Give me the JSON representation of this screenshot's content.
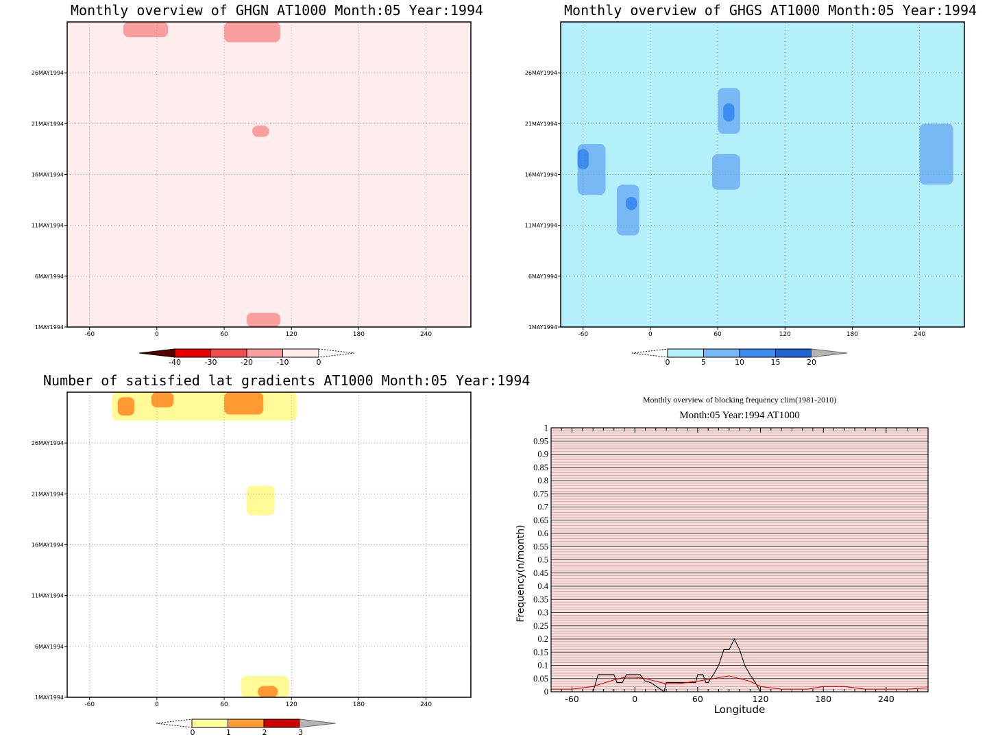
{
  "chart_data": [
    {
      "type": "heatmap",
      "title": "Monthly overview of GHGN AT1000 Month:05 Year:1994",
      "x_ticks": [
        -60,
        0,
        60,
        120,
        180,
        240
      ],
      "y_ticks": [
        "1MAY1994",
        "6MAY1994",
        "11MAY1994",
        "16MAY1994",
        "21MAY1994",
        "26MAY1994"
      ],
      "xlim": [
        -80,
        280
      ],
      "ylim_days": [
        1,
        31
      ],
      "grid": true,
      "colorbar": {
        "labels": [
          "-40",
          "-30",
          "-20",
          "-10",
          "0"
        ],
        "colors": [
          "#5a0000",
          "#e60000",
          "#f24d4d",
          "#fa9f9f",
          "#ffecec"
        ]
      },
      "regions": [
        {
          "level": "0",
          "color": "#ffecec",
          "shape": "background"
        },
        {
          "level": "-10",
          "color": "#fa9f9f",
          "lon": [
            -30,
            10
          ],
          "day": [
            29.5,
            31
          ]
        },
        {
          "level": "-10",
          "color": "#fa9f9f",
          "lon": [
            60,
            110
          ],
          "day": [
            29,
            31
          ]
        },
        {
          "level": "-10",
          "color": "#fa9f9f",
          "lon": [
            85,
            100
          ],
          "day": [
            19.7,
            20.8
          ]
        },
        {
          "level": "-10",
          "color": "#fa9f9f",
          "lon": [
            80,
            110
          ],
          "day": [
            1,
            2.4
          ]
        }
      ]
    },
    {
      "type": "heatmap",
      "title": "Monthly overview of GHGS AT1000 Month:05 Year:1994",
      "x_ticks": [
        -60,
        0,
        60,
        120,
        180,
        240
      ],
      "y_ticks": [
        "1MAY1994",
        "6MAY1994",
        "11MAY1994",
        "16MAY1994",
        "21MAY1994",
        "26MAY1994"
      ],
      "xlim": [
        -80,
        280
      ],
      "ylim_days": [
        1,
        31
      ],
      "grid": true,
      "colorbar": {
        "labels": [
          "0",
          "5",
          "10",
          "15",
          "20"
        ],
        "colors": [
          "#b4f0fa",
          "#78b9f5",
          "#3c8cf0",
          "#1e64d2",
          "#b4b4b4"
        ]
      },
      "regions": [
        {
          "level": "0",
          "color": "#b4f0fa",
          "shape": "broad fields"
        },
        {
          "level": "5",
          "color": "#78b9f5",
          "lon": [
            -65,
            -40
          ],
          "day": [
            14,
            19
          ]
        },
        {
          "level": "5",
          "color": "#78b9f5",
          "lon": [
            -30,
            -10
          ],
          "day": [
            10,
            15
          ]
        },
        {
          "level": "5",
          "color": "#78b9f5",
          "lon": [
            60,
            80
          ],
          "day": [
            20,
            24.5
          ]
        },
        {
          "level": "5",
          "color": "#78b9f5",
          "lon": [
            55,
            80
          ],
          "day": [
            14.5,
            18
          ]
        },
        {
          "level": "5",
          "color": "#78b9f5",
          "lon": [
            240,
            270
          ],
          "day": [
            15,
            21
          ]
        },
        {
          "level": "10",
          "color": "#3c8cf0",
          "lon": [
            -65,
            -55
          ],
          "day": [
            16.5,
            18.5
          ]
        },
        {
          "level": "10",
          "color": "#3c8cf0",
          "lon": [
            -22,
            -12
          ],
          "day": [
            12.5,
            13.8
          ]
        },
        {
          "level": "10",
          "color": "#3c8cf0",
          "lon": [
            65,
            75
          ],
          "day": [
            21.2,
            23
          ]
        }
      ]
    },
    {
      "type": "heatmap",
      "title": "Number of satisfied lat gradients AT1000 Month:05 Year:1994",
      "x_ticks": [
        -60,
        0,
        60,
        120,
        180,
        240
      ],
      "y_ticks": [
        "1MAY1994",
        "6MAY1994",
        "11MAY1994",
        "16MAY1994",
        "21MAY1994",
        "26MAY1994"
      ],
      "xlim": [
        -80,
        280
      ],
      "ylim_days": [
        1,
        31
      ],
      "grid": true,
      "colorbar": {
        "labels": [
          "0",
          "1",
          "2",
          "3"
        ],
        "colors": [
          "#ffff9e",
          "#ff9a33",
          "#cc0000",
          "#b4b4b4"
        ]
      },
      "regions": [
        {
          "level": "1",
          "color": "#fffa96",
          "lon": [
            -40,
            125
          ],
          "day": [
            28.2,
            31
          ]
        },
        {
          "level": "1",
          "color": "#fffa96",
          "lon": [
            80,
            105
          ],
          "day": [
            18.9,
            21.8
          ]
        },
        {
          "level": "1",
          "color": "#fffa96",
          "lon": [
            75,
            118
          ],
          "day": [
            1,
            3.1
          ]
        },
        {
          "level": "2",
          "color": "#ff9a33",
          "lon": [
            -35,
            -20
          ],
          "day": [
            28.7,
            30.5
          ]
        },
        {
          "level": "2",
          "color": "#ff9a33",
          "lon": [
            -5,
            15
          ],
          "day": [
            29.5,
            31
          ]
        },
        {
          "level": "2",
          "color": "#ff9a33",
          "lon": [
            60,
            95
          ],
          "day": [
            28.8,
            31
          ]
        },
        {
          "level": "2",
          "color": "#ff9a33",
          "lon": [
            90,
            108
          ],
          "day": [
            1,
            2.1
          ]
        }
      ]
    },
    {
      "type": "line",
      "title": "Monthly overview of blocking frequency clim(1981-2010)",
      "subtitle": "Month:05 Year:1994  AT1000",
      "xlabel": "Longitude",
      "ylabel": "Frequency(n/month)",
      "xlim": [
        -80,
        280
      ],
      "ylim": [
        0,
        1
      ],
      "x_ticks": [
        -60,
        0,
        60,
        120,
        180,
        240
      ],
      "y_ticks": [
        "0",
        "0.05",
        "0.1",
        "0.15",
        "0.2",
        "0.25",
        "0.3",
        "0.35",
        "0.4",
        "0.45",
        "0.5",
        "0.55",
        "0.6",
        "0.65",
        "0.7",
        "0.75",
        "0.8",
        "0.85",
        "0.9",
        "0.95",
        "1"
      ],
      "grid": true,
      "series": [
        {
          "color": "#000000",
          "x": [
            -80,
            -40,
            -35,
            -20,
            -17,
            -12,
            -8,
            5,
            10,
            15,
            28,
            30,
            35,
            58,
            60,
            65,
            68,
            70,
            75,
            80,
            85,
            90,
            95,
            100,
            105,
            110,
            115,
            120,
            280
          ],
          "y": [
            0,
            0,
            0.065,
            0.065,
            0.035,
            0.035,
            0.065,
            0.065,
            0.04,
            0.035,
            0,
            0.035,
            0.035,
            0.035,
            0.065,
            0.065,
            0.035,
            0.035,
            0.065,
            0.1,
            0.16,
            0.16,
            0.2,
            0.16,
            0.1,
            0.065,
            0.035,
            0,
            0
          ]
        },
        {
          "color": "#dd0000",
          "x": [
            -80,
            -60,
            -40,
            -20,
            -10,
            0,
            10,
            20,
            30,
            40,
            60,
            75,
            90,
            100,
            110,
            120,
            140,
            165,
            180,
            200,
            220,
            240,
            260,
            280
          ],
          "y": [
            0.01,
            0.01,
            0.02,
            0.045,
            0.055,
            0.055,
            0.05,
            0.04,
            0.03,
            0.03,
            0.04,
            0.05,
            0.06,
            0.05,
            0.04,
            0.02,
            0.01,
            0.01,
            0.02,
            0.02,
            0.01,
            0.01,
            0.01,
            0.015
          ]
        }
      ]
    }
  ]
}
